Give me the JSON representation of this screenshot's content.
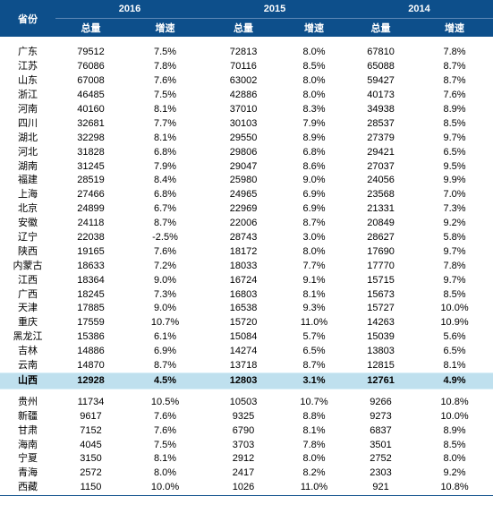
{
  "header": {
    "province_label": "省份",
    "years": [
      "2016",
      "2015",
      "2014"
    ],
    "total_label": "总量",
    "growth_label": "增速"
  },
  "rows_top": [
    {
      "p": "广东",
      "v": [
        "79512",
        "7.5%",
        "72813",
        "8.0%",
        "67810",
        "7.8%"
      ]
    },
    {
      "p": "江苏",
      "v": [
        "76086",
        "7.8%",
        "70116",
        "8.5%",
        "65088",
        "8.7%"
      ]
    },
    {
      "p": "山东",
      "v": [
        "67008",
        "7.6%",
        "63002",
        "8.0%",
        "59427",
        "8.7%"
      ]
    },
    {
      "p": "浙江",
      "v": [
        "46485",
        "7.5%",
        "42886",
        "8.0%",
        "40173",
        "7.6%"
      ]
    },
    {
      "p": "河南",
      "v": [
        "40160",
        "8.1%",
        "37010",
        "8.3%",
        "34938",
        "8.9%"
      ]
    },
    {
      "p": "四川",
      "v": [
        "32681",
        "7.7%",
        "30103",
        "7.9%",
        "28537",
        "8.5%"
      ]
    },
    {
      "p": "湖北",
      "v": [
        "32298",
        "8.1%",
        "29550",
        "8.9%",
        "27379",
        "9.7%"
      ]
    },
    {
      "p": "河北",
      "v": [
        "31828",
        "6.8%",
        "29806",
        "6.8%",
        "29421",
        "6.5%"
      ]
    },
    {
      "p": "湖南",
      "v": [
        "31245",
        "7.9%",
        "29047",
        "8.6%",
        "27037",
        "9.5%"
      ]
    },
    {
      "p": "福建",
      "v": [
        "28519",
        "8.4%",
        "25980",
        "9.0%",
        "24056",
        "9.9%"
      ]
    },
    {
      "p": "上海",
      "v": [
        "27466",
        "6.8%",
        "24965",
        "6.9%",
        "23568",
        "7.0%"
      ]
    },
    {
      "p": "北京",
      "v": [
        "24899",
        "6.7%",
        "22969",
        "6.9%",
        "21331",
        "7.3%"
      ]
    },
    {
      "p": "安徽",
      "v": [
        "24118",
        "8.7%",
        "22006",
        "8.7%",
        "20849",
        "9.2%"
      ]
    },
    {
      "p": "辽宁",
      "v": [
        "22038",
        "-2.5%",
        "28743",
        "3.0%",
        "28627",
        "5.8%"
      ]
    },
    {
      "p": "陕西",
      "v": [
        "19165",
        "7.6%",
        "18172",
        "8.0%",
        "17690",
        "9.7%"
      ]
    },
    {
      "p": "内蒙古",
      "v": [
        "18633",
        "7.2%",
        "18033",
        "7.7%",
        "17770",
        "7.8%"
      ]
    },
    {
      "p": "江西",
      "v": [
        "18364",
        "9.0%",
        "16724",
        "9.1%",
        "15715",
        "9.7%"
      ]
    },
    {
      "p": "广西",
      "v": [
        "18245",
        "7.3%",
        "16803",
        "8.1%",
        "15673",
        "8.5%"
      ]
    },
    {
      "p": "天津",
      "v": [
        "17885",
        "9.0%",
        "16538",
        "9.3%",
        "15727",
        "10.0%"
      ]
    },
    {
      "p": "重庆",
      "v": [
        "17559",
        "10.7%",
        "15720",
        "11.0%",
        "14263",
        "10.9%"
      ]
    },
    {
      "p": "黑龙江",
      "v": [
        "15386",
        "6.1%",
        "15084",
        "5.7%",
        "15039",
        "5.6%"
      ]
    },
    {
      "p": "吉林",
      "v": [
        "14886",
        "6.9%",
        "14274",
        "6.5%",
        "13803",
        "6.5%"
      ]
    },
    {
      "p": "云南",
      "v": [
        "14870",
        "8.7%",
        "13718",
        "8.7%",
        "12815",
        "8.1%"
      ]
    }
  ],
  "row_highlight": {
    "p": "山西",
    "v": [
      "12928",
      "4.5%",
      "12803",
      "3.1%",
      "12761",
      "4.9%"
    ]
  },
  "rows_bottom": [
    {
      "p": "贵州",
      "v": [
        "11734",
        "10.5%",
        "10503",
        "10.7%",
        "9266",
        "10.8%"
      ]
    },
    {
      "p": "新疆",
      "v": [
        "9617",
        "7.6%",
        "9325",
        "8.8%",
        "9273",
        "10.0%"
      ]
    },
    {
      "p": "甘肃",
      "v": [
        "7152",
        "7.6%",
        "6790",
        "8.1%",
        "6837",
        "8.9%"
      ]
    },
    {
      "p": "海南",
      "v": [
        "4045",
        "7.5%",
        "3703",
        "7.8%",
        "3501",
        "8.5%"
      ]
    },
    {
      "p": "宁夏",
      "v": [
        "3150",
        "8.1%",
        "2912",
        "8.0%",
        "2752",
        "8.0%"
      ]
    },
    {
      "p": "青海",
      "v": [
        "2572",
        "8.0%",
        "2417",
        "8.2%",
        "2303",
        "9.2%"
      ]
    },
    {
      "p": "西藏",
      "v": [
        "1150",
        "10.0%",
        "1026",
        "11.0%",
        "921",
        "10.8%"
      ]
    }
  ],
  "colors": {
    "header_bg": "#0d4f8b",
    "highlight_bg": "#bfe0ee"
  }
}
